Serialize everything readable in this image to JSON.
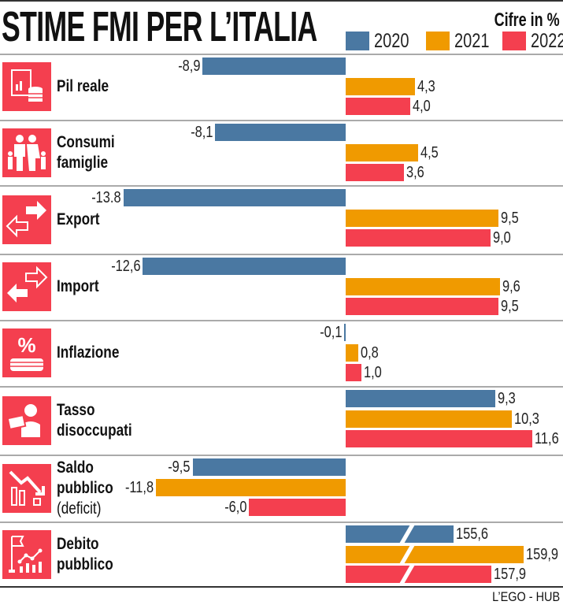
{
  "chart_data": {
    "type": "bar",
    "orientation": "horizontal",
    "title": "STIME FMI PER L’ITALIA",
    "unit_note": "Cifre in %",
    "legend_position": "top-right",
    "series": [
      {
        "name": "2020",
        "color": "#4a78a2"
      },
      {
        "name": "2021",
        "color": "#f09a00"
      },
      {
        "name": "2022",
        "color": "#f43f4f"
      }
    ],
    "categories": [
      {
        "label": [
          "Pil reale"
        ],
        "icon": "gdp-coins-icon",
        "values": [
          -8.9,
          4.3,
          4.0
        ],
        "labels": [
          "-8,9",
          "4,3",
          "4,0"
        ]
      },
      {
        "label": [
          "Consumi",
          "famiglie"
        ],
        "icon": "family-icon",
        "values": [
          -8.1,
          4.5,
          3.6
        ],
        "labels": [
          "-8,1",
          "4,5",
          "3,6"
        ]
      },
      {
        "label": [
          "Export"
        ],
        "icon": "export-arrows-icon",
        "values": [
          -13.8,
          9.5,
          9.0
        ],
        "labels": [
          "-13.8",
          "9,5",
          "9,0"
        ]
      },
      {
        "label": [
          "Import"
        ],
        "icon": "import-arrows-icon",
        "values": [
          -12.6,
          9.6,
          9.5
        ],
        "labels": [
          "-12,6",
          "9,6",
          "9,5"
        ]
      },
      {
        "label": [
          "Inflazione"
        ],
        "icon": "percent-coins-icon",
        "values": [
          -0.1,
          0.8,
          1.0
        ],
        "labels": [
          "-0,1",
          "0,8",
          "1,0"
        ]
      },
      {
        "label": [
          "Tasso",
          "disoccupati"
        ],
        "icon": "unemployed-icon",
        "values": [
          9.3,
          10.3,
          11.6
        ],
        "labels": [
          "9,3",
          "10,3",
          "11,6"
        ]
      },
      {
        "label": [
          "Saldo",
          "pubblico",
          "(deficit)"
        ],
        "icon": "declining-chart-icon",
        "values": [
          -9.5,
          -11.8,
          -6.0
        ],
        "labels": [
          "-9,5",
          "-11,8",
          "-6,0"
        ]
      },
      {
        "label": [
          "Debito",
          "pubblico"
        ],
        "icon": "debt-flag-chart-icon",
        "values": [
          155.6,
          159.9,
          157.9
        ],
        "labels": [
          "155,6",
          "159,9",
          "157,9"
        ],
        "broken_axis": true
      }
    ],
    "grid": false
  },
  "credit": "L’EGO - HUB"
}
